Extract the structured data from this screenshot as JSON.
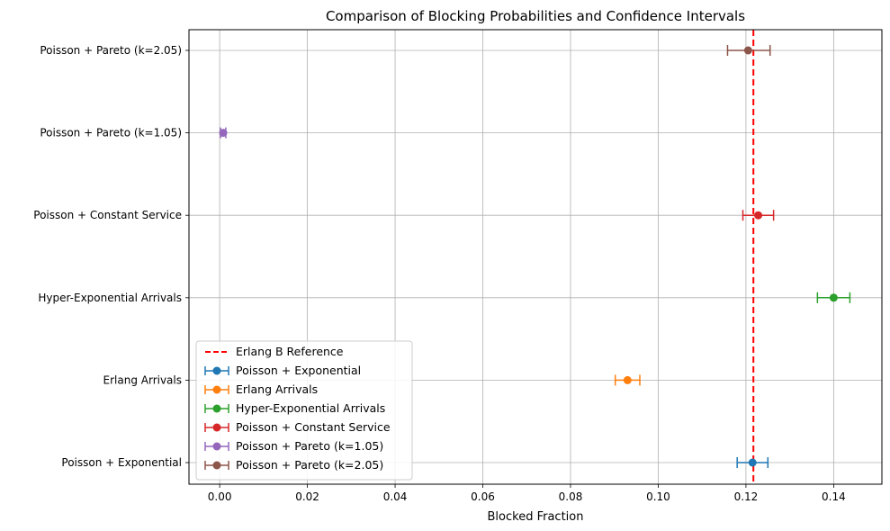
{
  "chart_data": {
    "type": "errorbar",
    "title": "Comparison of Blocking Probabilities and Confidence Intervals",
    "xlabel": "Blocked Fraction",
    "ylabel": "",
    "xlim": [
      -0.007,
      0.151
    ],
    "xticks": [
      0.0,
      0.02,
      0.04,
      0.06,
      0.08,
      0.1,
      0.12,
      0.14
    ],
    "xtick_labels": [
      "0.00",
      "0.02",
      "0.04",
      "0.06",
      "0.08",
      "0.10",
      "0.12",
      "0.14"
    ],
    "grid": true,
    "legend_position": "lower-left",
    "reference_line": {
      "label": "Erlang B Reference",
      "x": 0.1217,
      "color": "#ff0000",
      "style": "dashed"
    },
    "series": [
      {
        "name": "Poisson + Exponential",
        "value": 0.1215,
        "ci_low": 0.118,
        "ci_high": 0.125,
        "color": "#1f77b4"
      },
      {
        "name": "Erlang Arrivals",
        "value": 0.093,
        "ci_low": 0.0902,
        "ci_high": 0.0958,
        "color": "#ff7f0e"
      },
      {
        "name": "Hyper-Exponential Arrivals",
        "value": 0.14,
        "ci_low": 0.1363,
        "ci_high": 0.1437,
        "color": "#2ca02c"
      },
      {
        "name": "Poisson + Constant Service",
        "value": 0.1228,
        "ci_low": 0.1193,
        "ci_high": 0.1263,
        "color": "#d62728"
      },
      {
        "name": "Poisson + Pareto (k=1.05)",
        "value": 0.0008,
        "ci_low": 0.0002,
        "ci_high": 0.0014,
        "color": "#9467bd"
      },
      {
        "name": "Poisson + Pareto (k=2.05)",
        "value": 0.1205,
        "ci_low": 0.1158,
        "ci_high": 0.1255,
        "color": "#8c564b"
      }
    ]
  }
}
